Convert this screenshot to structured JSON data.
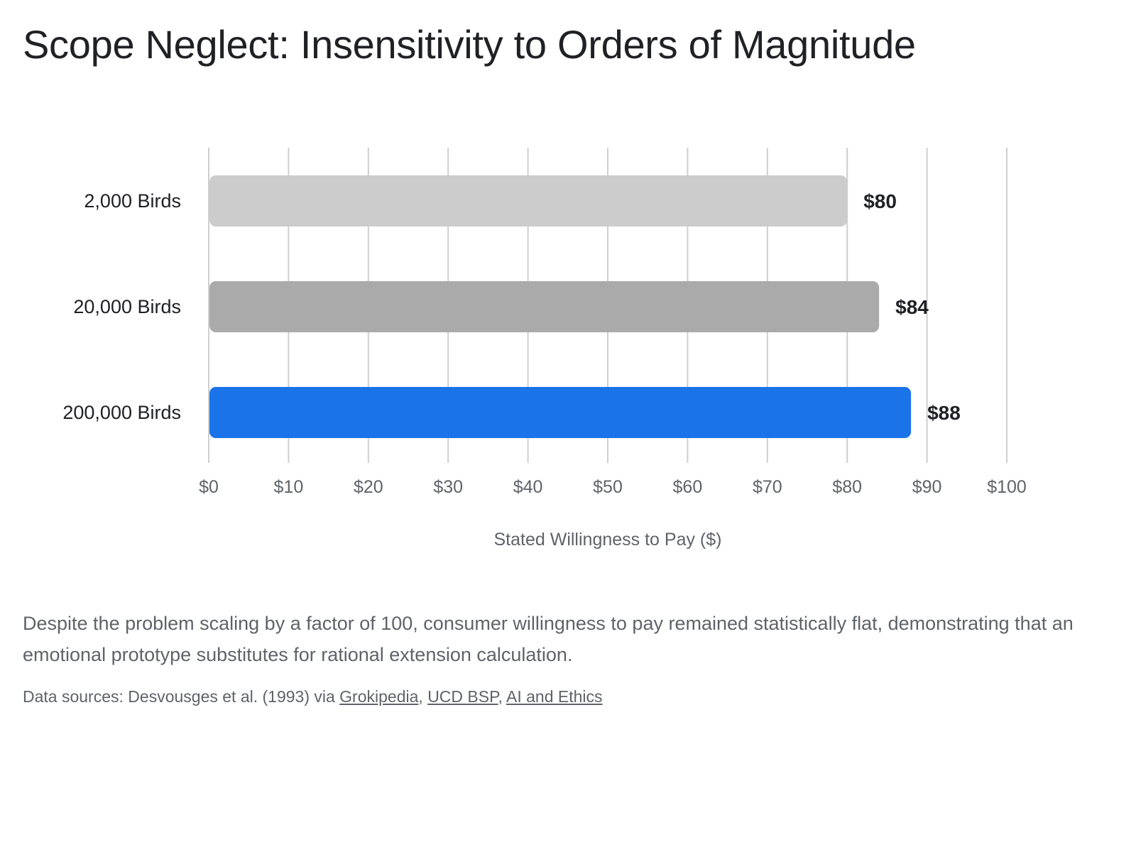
{
  "title": "Scope Neglect: Insensitivity to Orders of Magnitude",
  "chart_data": {
    "type": "bar",
    "orientation": "horizontal",
    "categories": [
      "2,000 Birds",
      "20,000 Birds",
      "200,000 Birds"
    ],
    "values": [
      80,
      84,
      88
    ],
    "value_labels": [
      "$80",
      "$84",
      "$88"
    ],
    "colors": [
      "#cccccc",
      "#aaaaaa",
      "#1a73e8"
    ],
    "xlabel": "Stated Willingness to Pay ($)",
    "ylabel": "",
    "xlim": [
      0,
      100
    ],
    "xticks": [
      0,
      10,
      20,
      30,
      40,
      50,
      60,
      70,
      80,
      90,
      100
    ],
    "xtick_labels": [
      "$0",
      "$10",
      "$20",
      "$30",
      "$40",
      "$50",
      "$60",
      "$70",
      "$80",
      "$90",
      "$100"
    ],
    "grid": true,
    "legend": "none"
  },
  "description": "Despite the problem scaling by a factor of 100, consumer willingness to pay remained statistically flat, demonstrating that an emotional prototype substitutes for rational extension calculation.",
  "sources": {
    "prefix": "Data sources: Desvousges et al. (1993) via ",
    "links": [
      "Grokipedia",
      "UCD BSP",
      "AI and Ethics"
    ],
    "separator": ", "
  }
}
